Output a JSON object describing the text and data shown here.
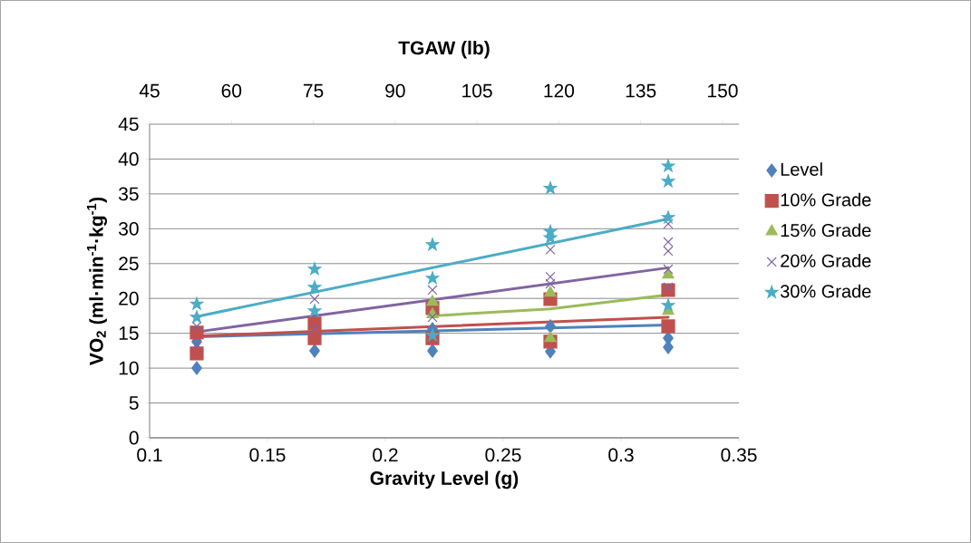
{
  "chart_data": {
    "type": "scatter",
    "xlabel": "Gravity Level (g)",
    "ylabel": "VO$_{2}$  (ml·min$^{-1}$·kg$^{-1}$)",
    "x2label": "TGAW (lb)",
    "xlim": [
      0.1,
      0.35
    ],
    "xticks": [
      0.1,
      0.15,
      0.2,
      0.25,
      0.3,
      0.35
    ],
    "x2lim": [
      45,
      153
    ],
    "x2ticks": [
      45,
      60,
      75,
      90,
      105,
      120,
      135,
      150
    ],
    "ylim": [
      0,
      45
    ],
    "yticks": [
      0,
      5,
      10,
      15,
      20,
      25,
      30,
      35,
      40,
      45
    ],
    "grid": "y",
    "legend": "right",
    "series": [
      {
        "name": "Level",
        "color": "#4f81bd",
        "marker": "diamond",
        "x": [
          0.12,
          0.12,
          0.17,
          0.22,
          0.22,
          0.27,
          0.27,
          0.32,
          0.32
        ],
        "values": [
          10,
          13.8,
          12.5,
          12.5,
          15.6,
          12.4,
          16,
          13,
          14.3
        ]
      },
      {
        "name": "10% Grade",
        "color": "#c0504d",
        "marker": "square",
        "x": [
          0.12,
          0.12,
          0.17,
          0.17,
          0.22,
          0.22,
          0.27,
          0.27,
          0.32,
          0.32
        ],
        "values": [
          12.1,
          15.1,
          14.3,
          16.4,
          14.3,
          18.6,
          13.8,
          19.9,
          16,
          21.2
        ]
      },
      {
        "name": "15% Grade",
        "color": "#9bbb59",
        "marker": "triangle",
        "x": [
          0.22,
          0.22,
          0.27,
          0.27,
          0.32,
          0.32
        ],
        "values": [
          17.7,
          19.5,
          14.3,
          20.8,
          18.2,
          23.4
        ]
      },
      {
        "name": "20% Grade",
        "color": "#8064a2",
        "marker": "cross",
        "x": [
          0.12,
          0.12,
          0.17,
          0.17,
          0.22,
          0.22,
          0.27,
          0.27,
          0.27,
          0.32,
          0.32,
          0.32,
          0.32,
          0.32
        ],
        "values": [
          13.4,
          16,
          15.6,
          19.9,
          17.3,
          21.2,
          22.1,
          23.1,
          27,
          21.6,
          24.2,
          26.8,
          28.1,
          30.7
        ]
      },
      {
        "name": "30% Grade",
        "color": "#4bacc6",
        "marker": "star",
        "x": [
          0.12,
          0.12,
          0.17,
          0.17,
          0.17,
          0.22,
          0.22,
          0.22,
          0.27,
          0.27,
          0.27,
          0.32,
          0.32,
          0.32,
          0.32
        ],
        "values": [
          17.3,
          19.2,
          18.2,
          21.6,
          24.2,
          14.7,
          22.9,
          27.7,
          28.7,
          29.6,
          35.8,
          19,
          31.6,
          36.8,
          39
        ]
      },
      {
        "type": "line",
        "color": "#4f81bd",
        "x": [
          0.12,
          0.32
        ],
        "values": [
          14.5,
          16.2
        ]
      },
      {
        "type": "line",
        "color": "#c0504d",
        "x": [
          0.12,
          0.32
        ],
        "values": [
          14.6,
          17.3
        ]
      },
      {
        "type": "line",
        "color": "#9bbb59",
        "x": [
          0.22,
          0.27,
          0.32
        ],
        "values": [
          17.5,
          18.5,
          20.5
        ]
      },
      {
        "type": "line",
        "color": "#8064a2",
        "x": [
          0.12,
          0.32
        ],
        "values": [
          15.2,
          24.4
        ]
      },
      {
        "type": "line",
        "color": "#4bacc6",
        "x": [
          0.12,
          0.32
        ],
        "values": [
          17.4,
          31.4
        ]
      }
    ]
  }
}
